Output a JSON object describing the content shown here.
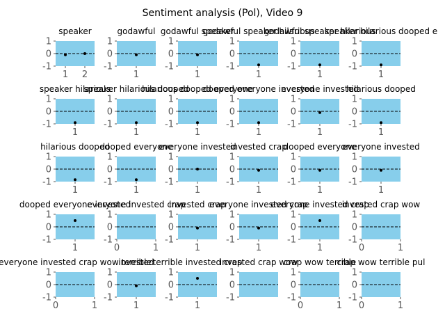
{
  "figure_title": "Sentiment analysis (Pol), Video 9",
  "colors": {
    "panel_fill": "#87ceeb",
    "point": "#000000",
    "zero_line": "#000000",
    "text": "#000000",
    "tick_label": "#555555"
  },
  "chart_data": [
    {
      "type": "scatter",
      "title": "speaker",
      "x": [
        1,
        2
      ],
      "y": [
        -0.1,
        0.0
      ],
      "xticks": [
        1,
        2
      ],
      "xlim": [
        0.5,
        2.5
      ],
      "ylim": [
        -1,
        1
      ],
      "yticks": [
        -1,
        0,
        1
      ],
      "zero_line": true
    },
    {
      "type": "scatter",
      "title": "godawful",
      "x": [
        1
      ],
      "y": [
        -0.1
      ],
      "xticks": [
        1
      ],
      "xlim": [
        0.5,
        1.5
      ],
      "ylim": [
        -1,
        1
      ],
      "yticks": [
        -1,
        0,
        1
      ],
      "zero_line": true
    },
    {
      "type": "scatter",
      "title": "godawful speaker",
      "x": [
        1
      ],
      "y": [
        -0.1
      ],
      "xticks": [
        1
      ],
      "xlim": [
        0.5,
        1.5
      ],
      "ylim": [
        -1,
        1
      ],
      "yticks": [
        -1,
        0,
        1
      ],
      "zero_line": true
    },
    {
      "type": "scatter",
      "title": "godawful speaker hilarious",
      "x": [
        1
      ],
      "y": [
        -0.9
      ],
      "xticks": [
        1
      ],
      "xlim": [
        0.5,
        1.5
      ],
      "ylim": [
        -1,
        1
      ],
      "yticks": [
        -1,
        0,
        1
      ],
      "zero_line": true
    },
    {
      "type": "scatter",
      "title": "godawful speaker hilarious",
      "x": [
        1
      ],
      "y": [
        -0.9
      ],
      "xticks": [
        1
      ],
      "xlim": [
        0.5,
        1.5
      ],
      "ylim": [
        -1,
        1
      ],
      "yticks": [
        -1,
        0,
        1
      ],
      "zero_line": true
    },
    {
      "type": "scatter",
      "title": "speaker hilarious dooped e",
      "x": [
        1
      ],
      "y": [
        -0.9
      ],
      "xticks": [
        1
      ],
      "xlim": [
        0.5,
        1.5
      ],
      "ylim": [
        -1,
        1
      ],
      "yticks": [
        -1,
        0,
        1
      ],
      "zero_line": true
    },
    {
      "type": "scatter",
      "title": "speaker hilarious",
      "x": [
        1
      ],
      "y": [
        -0.9
      ],
      "xticks": [
        1
      ],
      "xlim": [
        0.5,
        1.5
      ],
      "ylim": [
        -1,
        1
      ],
      "yticks": [
        -1,
        0,
        1
      ],
      "zero_line": true
    },
    {
      "type": "scatter",
      "title": "speaker hilarious dooped",
      "x": [
        1
      ],
      "y": [
        -0.9
      ],
      "xticks": [
        1
      ],
      "xlim": [
        0.5,
        1.5
      ],
      "ylim": [
        -1,
        1
      ],
      "yticks": [
        -1,
        0,
        1
      ],
      "zero_line": true
    },
    {
      "type": "scatter",
      "title": "hilarious dooped everyone",
      "x": [
        1
      ],
      "y": [
        -0.9
      ],
      "xticks": [
        1
      ],
      "xlim": [
        0.5,
        1.5
      ],
      "ylim": [
        -1,
        1
      ],
      "yticks": [
        -1,
        0,
        1
      ],
      "zero_line": true
    },
    {
      "type": "scatter",
      "title": "dooped everyone invested",
      "x": [
        1
      ],
      "y": [
        -0.9
      ],
      "xticks": [
        1
      ],
      "xlim": [
        0.5,
        1.5
      ],
      "ylim": [
        -1,
        1
      ],
      "yticks": [
        -1,
        0,
        1
      ],
      "zero_line": true
    },
    {
      "type": "scatter",
      "title": "everyone invested",
      "x": [
        1
      ],
      "y": [
        -0.1
      ],
      "xticks": [
        1
      ],
      "xlim": [
        0.5,
        1.5
      ],
      "ylim": [
        -1,
        1
      ],
      "yticks": [
        -1,
        0,
        1
      ],
      "zero_line": true
    },
    {
      "type": "scatter",
      "title": "hilarious dooped",
      "x": [
        1
      ],
      "y": [
        -0.9
      ],
      "xticks": [
        1
      ],
      "xlim": [
        0.5,
        1.5
      ],
      "ylim": [
        -1,
        1
      ],
      "yticks": [
        -1,
        0,
        1
      ],
      "zero_line": true
    },
    {
      "type": "scatter",
      "title": "hilarious dooped",
      "x": [
        1
      ],
      "y": [
        -0.85
      ],
      "xticks": [
        1
      ],
      "xlim": [
        0.5,
        1.5
      ],
      "ylim": [
        -1,
        1
      ],
      "yticks": [
        -1,
        0,
        1
      ],
      "zero_line": true
    },
    {
      "type": "scatter",
      "title": "dooped everyone",
      "x": [
        1
      ],
      "y": [
        -0.85
      ],
      "xticks": [
        1
      ],
      "xlim": [
        0.5,
        1.5
      ],
      "ylim": [
        -1,
        1
      ],
      "yticks": [
        -1,
        0,
        1
      ],
      "zero_line": true
    },
    {
      "type": "scatter",
      "title": "everyone invested",
      "x": [
        1
      ],
      "y": [
        0.0
      ],
      "xticks": [
        1
      ],
      "xlim": [
        0.5,
        1.5
      ],
      "ylim": [
        -1,
        1
      ],
      "yticks": [
        -1,
        0,
        1
      ],
      "zero_line": true
    },
    {
      "type": "scatter",
      "title": "invested crap",
      "x": [
        1
      ],
      "y": [
        -0.1
      ],
      "xticks": [
        1
      ],
      "xlim": [
        0.5,
        1.5
      ],
      "ylim": [
        -1,
        1
      ],
      "yticks": [
        -1,
        0,
        1
      ],
      "zero_line": true
    },
    {
      "type": "scatter",
      "title": "dooped everyone",
      "x": [
        1
      ],
      "y": [
        -0.1
      ],
      "xticks": [
        1
      ],
      "xlim": [
        0.5,
        1.5
      ],
      "ylim": [
        -1,
        1
      ],
      "yticks": [
        -1,
        0,
        1
      ],
      "zero_line": true
    },
    {
      "type": "scatter",
      "title": "everyone invested",
      "x": [
        1
      ],
      "y": [
        -0.1
      ],
      "xticks": [
        1
      ],
      "xlim": [
        0.5,
        1.5
      ],
      "ylim": [
        -1,
        1
      ],
      "yticks": [
        -1,
        0,
        1
      ],
      "zero_line": true
    },
    {
      "type": "scatter",
      "title": "dooped everyone invested",
      "x": [
        1
      ],
      "y": [
        0.5
      ],
      "xticks": [
        1
      ],
      "xlim": [
        0.5,
        1.5
      ],
      "ylim": [
        -1,
        1
      ],
      "yticks": [
        -1,
        0,
        1
      ],
      "zero_line": true
    },
    {
      "type": "scatter",
      "title": "everyone invested crap",
      "x": [],
      "y": [],
      "xticks": [
        0,
        1
      ],
      "xlim": [
        0,
        1
      ],
      "ylim": [
        -1,
        1
      ],
      "yticks": [
        -1,
        0,
        1
      ],
      "zero_line": true
    },
    {
      "type": "scatter",
      "title": "invested crap",
      "x": [
        1
      ],
      "y": [
        -0.1
      ],
      "xticks": [
        1
      ],
      "xlim": [
        0.5,
        1.5
      ],
      "ylim": [
        -1,
        1
      ],
      "yticks": [
        -1,
        0,
        1
      ],
      "zero_line": true
    },
    {
      "type": "scatter",
      "title": "everyone invested crap",
      "x": [
        1
      ],
      "y": [
        -0.1
      ],
      "xticks": [
        1
      ],
      "xlim": [
        0.5,
        1.5
      ],
      "ylim": [
        -1,
        1
      ],
      "yticks": [
        -1,
        0,
        1
      ],
      "zero_line": true
    },
    {
      "type": "scatter",
      "title": "everyone invested crap",
      "x": [
        1
      ],
      "y": [
        0.5
      ],
      "xticks": [
        1
      ],
      "xlim": [
        0.5,
        1.5
      ],
      "ylim": [
        -1,
        1
      ],
      "yticks": [
        -1,
        0,
        1
      ],
      "zero_line": true
    },
    {
      "type": "scatter",
      "title": "invested crap wow",
      "x": [],
      "y": [],
      "xticks": [
        0,
        1
      ],
      "xlim": [
        0,
        1
      ],
      "ylim": [
        -1,
        1
      ],
      "yticks": [
        -1,
        0,
        1
      ],
      "zero_line": true
    },
    {
      "type": "scatter",
      "title": "everyone invested crap wow terrible",
      "x": [],
      "y": [],
      "xticks": [
        0,
        1
      ],
      "xlim": [
        0,
        1
      ],
      "ylim": [
        -1,
        1
      ],
      "yticks": [
        -1,
        0,
        1
      ],
      "zero_line": true
    },
    {
      "type": "scatter",
      "title": "invested",
      "x": [
        1
      ],
      "y": [
        -0.1
      ],
      "xticks": [
        1
      ],
      "xlim": [
        0.5,
        1.5
      ],
      "ylim": [
        -1,
        1
      ],
      "yticks": [
        -1,
        0,
        1
      ],
      "zero_line": true
    },
    {
      "type": "scatter",
      "title": "terrible invested crap",
      "x": [
        1
      ],
      "y": [
        0.5
      ],
      "xticks": [
        1
      ],
      "xlim": [
        0.5,
        1.5
      ],
      "ylim": [
        -1,
        1
      ],
      "yticks": [
        -1,
        0,
        1
      ],
      "zero_line": true
    },
    {
      "type": "scatter",
      "title": "invested crap wow",
      "x": [],
      "y": [],
      "xticks": [],
      "xlim": [
        0,
        1
      ],
      "ylim": [
        -1,
        1
      ],
      "yticks": [
        -1,
        0,
        1
      ],
      "zero_line": true
    },
    {
      "type": "scatter",
      "title": "crap wow terrible",
      "x": [],
      "y": [],
      "xticks": [
        0,
        1
      ],
      "xlim": [
        0,
        1
      ],
      "ylim": [
        -1,
        1
      ],
      "yticks": [
        -1,
        0,
        1
      ],
      "zero_line": true
    },
    {
      "type": "scatter",
      "title": "crap wow terrible pul",
      "x": [],
      "y": [],
      "xticks": [
        0,
        1
      ],
      "xlim": [
        0,
        1
      ],
      "ylim": [
        -1,
        1
      ],
      "yticks": [
        -1,
        0,
        1
      ],
      "zero_line": true
    }
  ]
}
